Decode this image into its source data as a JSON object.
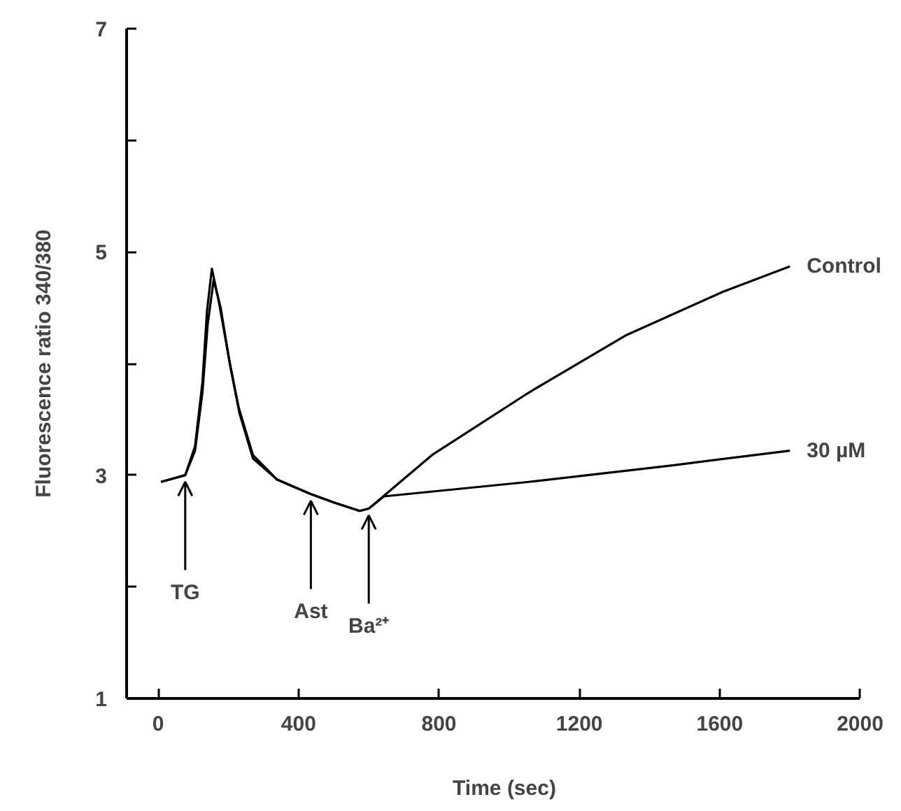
{
  "chart_data": {
    "type": "line",
    "xlabel": "Time (sec)",
    "ylabel": "Fluorescence ratio 340/380",
    "xlim": [
      -90,
      2000
    ],
    "ylim": [
      1,
      7
    ],
    "xticks": [
      0,
      400,
      800,
      1200,
      1600,
      2000
    ],
    "yticks": [
      1,
      {
        "value": 2,
        "label": null
      },
      3,
      {
        "value": 4,
        "label": null
      },
      5,
      {
        "value": 6,
        "label": null
      },
      7
    ],
    "grid": false,
    "legend": false,
    "series": [
      {
        "name": "Control",
        "color": "#000000",
        "x": [
          8,
          77,
          105,
          126,
          139,
          153,
          173,
          202,
          229,
          270,
          339,
          435,
          505,
          574,
          600,
          780,
          1056,
          1331,
          1607,
          1800
        ],
        "values": [
          2.94,
          3.0,
          3.26,
          3.83,
          4.47,
          4.85,
          4.55,
          4.04,
          3.61,
          3.18,
          2.96,
          2.83,
          2.75,
          2.68,
          2.7,
          3.18,
          3.74,
          4.25,
          4.64,
          4.87
        ]
      },
      {
        "name": "30 µM",
        "color": "#000000",
        "x": [
          8,
          77,
          105,
          126,
          141,
          158,
          178,
          205,
          232,
          270,
          339,
          435,
          505,
          574,
          600,
          643,
          1056,
          1470,
          1800
        ],
        "values": [
          2.94,
          3.0,
          3.22,
          3.74,
          4.35,
          4.75,
          4.5,
          3.98,
          3.55,
          3.15,
          2.96,
          2.83,
          2.75,
          2.68,
          2.7,
          2.81,
          2.94,
          3.09,
          3.22
        ]
      }
    ],
    "annotations": [
      {
        "text": "TG",
        "x": 77,
        "y": 3.0
      },
      {
        "text": "Ast",
        "x": 435,
        "y": 2.83
      },
      {
        "text": "Ba²⁺",
        "x": 600,
        "y": 2.7
      }
    ]
  }
}
